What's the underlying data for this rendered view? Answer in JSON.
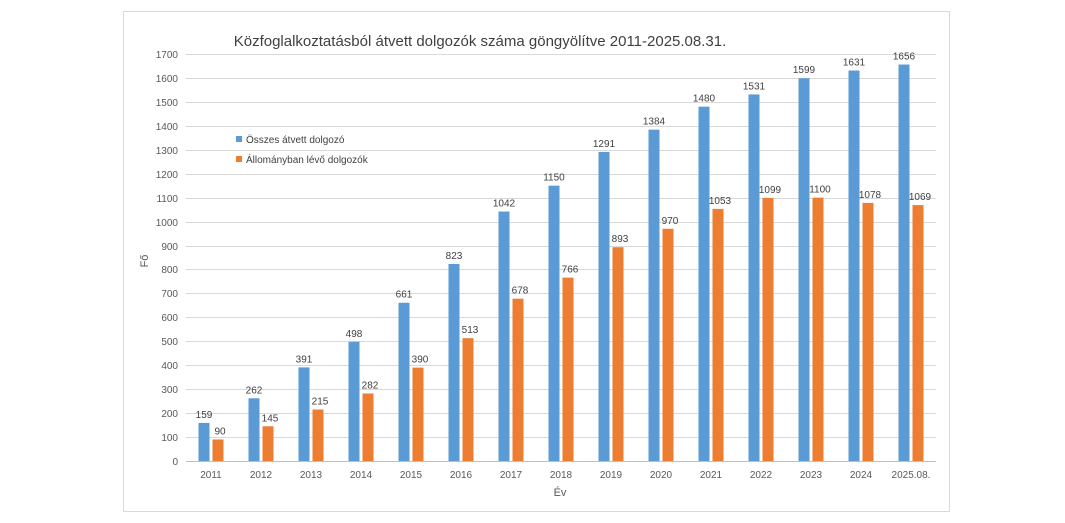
{
  "chart_data": {
    "type": "bar",
    "title": "Közfoglalkoztatásból átvett dolgozók száma göngyölítve 2011-2025.08.31.",
    "xlabel": "Év",
    "ylabel": "Fő",
    "ylim": [
      0,
      1700
    ],
    "ytick_step": 100,
    "grid": true,
    "legend_position": "top-left",
    "categories": [
      "2011",
      "2012",
      "2013",
      "2014",
      "2015",
      "2016",
      "2017",
      "2018",
      "2019",
      "2020",
      "2021",
      "2022",
      "2023",
      "2024",
      "2025.08."
    ],
    "series": [
      {
        "name": "Összes átvett dolgozó",
        "color": "#5b9bd5",
        "values": [
          159,
          262,
          391,
          498,
          661,
          823,
          1042,
          1150,
          1291,
          1384,
          1480,
          1531,
          1599,
          1631,
          1656
        ]
      },
      {
        "name": "Állományban lévő dolgozók",
        "color": "#ed7d31",
        "values": [
          90,
          145,
          215,
          282,
          390,
          513,
          678,
          766,
          893,
          970,
          1053,
          1099,
          1100,
          1078,
          1069
        ]
      }
    ]
  }
}
